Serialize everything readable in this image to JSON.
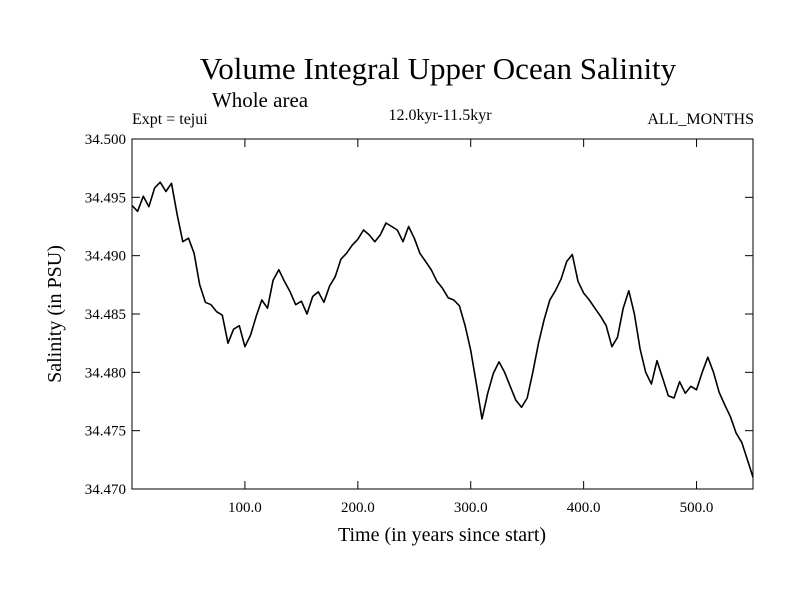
{
  "chart_data": {
    "type": "line",
    "title": "Volume Integral Upper Ocean Salinity",
    "subtitle": "Whole area",
    "experiment_label": "Expt = tejui",
    "period_label": "12.0kyr-11.5kyr",
    "months_label": "ALL_MONTHS",
    "xlabel": "Time (in years since start)",
    "ylabel": "Salinity (in PSU)",
    "xlim": [
      0,
      550
    ],
    "ylim": [
      34.47,
      34.5
    ],
    "xticks": [
      100,
      200,
      300,
      400,
      500
    ],
    "xtick_labels": [
      "100.0",
      "200.0",
      "300.0",
      "400.0",
      "500.0"
    ],
    "yticks": [
      34.47,
      34.475,
      34.48,
      34.485,
      34.49,
      34.495,
      34.5
    ],
    "ytick_labels": [
      "34.470",
      "34.475",
      "34.480",
      "34.485",
      "34.490",
      "34.495",
      "34.500"
    ],
    "grid": false,
    "series": [
      {
        "name": "Salinity",
        "color": "#000000",
        "x": [
          0,
          5,
          10,
          15,
          20,
          25,
          30,
          35,
          40,
          45,
          50,
          55,
          60,
          65,
          70,
          75,
          80,
          85,
          90,
          95,
          100,
          105,
          110,
          115,
          120,
          125,
          130,
          135,
          140,
          145,
          150,
          155,
          160,
          165,
          170,
          175,
          180,
          185,
          190,
          195,
          200,
          205,
          210,
          215,
          220,
          225,
          230,
          235,
          240,
          245,
          250,
          255,
          260,
          265,
          270,
          275,
          280,
          285,
          290,
          295,
          300,
          305,
          310,
          315,
          320,
          325,
          330,
          335,
          340,
          345,
          350,
          355,
          360,
          365,
          370,
          375,
          380,
          385,
          390,
          395,
          400,
          405,
          410,
          415,
          420,
          425,
          430,
          435,
          440,
          445,
          450,
          455,
          460,
          465,
          470,
          475,
          480,
          485,
          490,
          495,
          500,
          505,
          510,
          515,
          520,
          525,
          530,
          535,
          540,
          545,
          550
        ],
        "values": [
          34.4943,
          34.4938,
          34.4951,
          34.4942,
          34.4958,
          34.4963,
          34.4955,
          34.4962,
          34.4935,
          34.4912,
          34.4915,
          34.4902,
          34.4875,
          34.486,
          34.4858,
          34.4852,
          34.4849,
          34.4825,
          34.4837,
          34.484,
          34.4822,
          34.4832,
          34.4848,
          34.4862,
          34.4855,
          34.4879,
          34.4888,
          34.4878,
          34.4869,
          34.4858,
          34.4861,
          34.485,
          34.4865,
          34.4869,
          34.486,
          34.4874,
          34.4882,
          34.4897,
          34.4902,
          34.4909,
          34.4914,
          34.4922,
          34.4918,
          34.4912,
          34.4918,
          34.4928,
          34.4925,
          34.4922,
          34.4912,
          34.4925,
          34.4915,
          34.4902,
          34.4895,
          34.4888,
          34.4878,
          34.4872,
          34.4864,
          34.4862,
          34.4857,
          34.484,
          34.4819,
          34.479,
          34.476,
          34.4782,
          34.4799,
          34.4809,
          34.48,
          34.4788,
          34.4776,
          34.477,
          34.4778,
          34.48,
          34.4825,
          34.4845,
          34.4862,
          34.487,
          34.488,
          34.4895,
          34.4901,
          34.4878,
          34.4868,
          34.4862,
          34.4855,
          34.4848,
          34.484,
          34.4822,
          34.483,
          34.4855,
          34.487,
          34.485,
          34.482,
          34.48,
          34.479,
          34.481,
          34.4795,
          34.478,
          34.4778,
          34.4792,
          34.4782,
          34.4788,
          34.4785,
          34.48,
          34.4813,
          34.48,
          34.4783,
          34.4772,
          34.4762,
          34.4748,
          34.474,
          34.4725,
          34.471
        ]
      }
    ]
  }
}
